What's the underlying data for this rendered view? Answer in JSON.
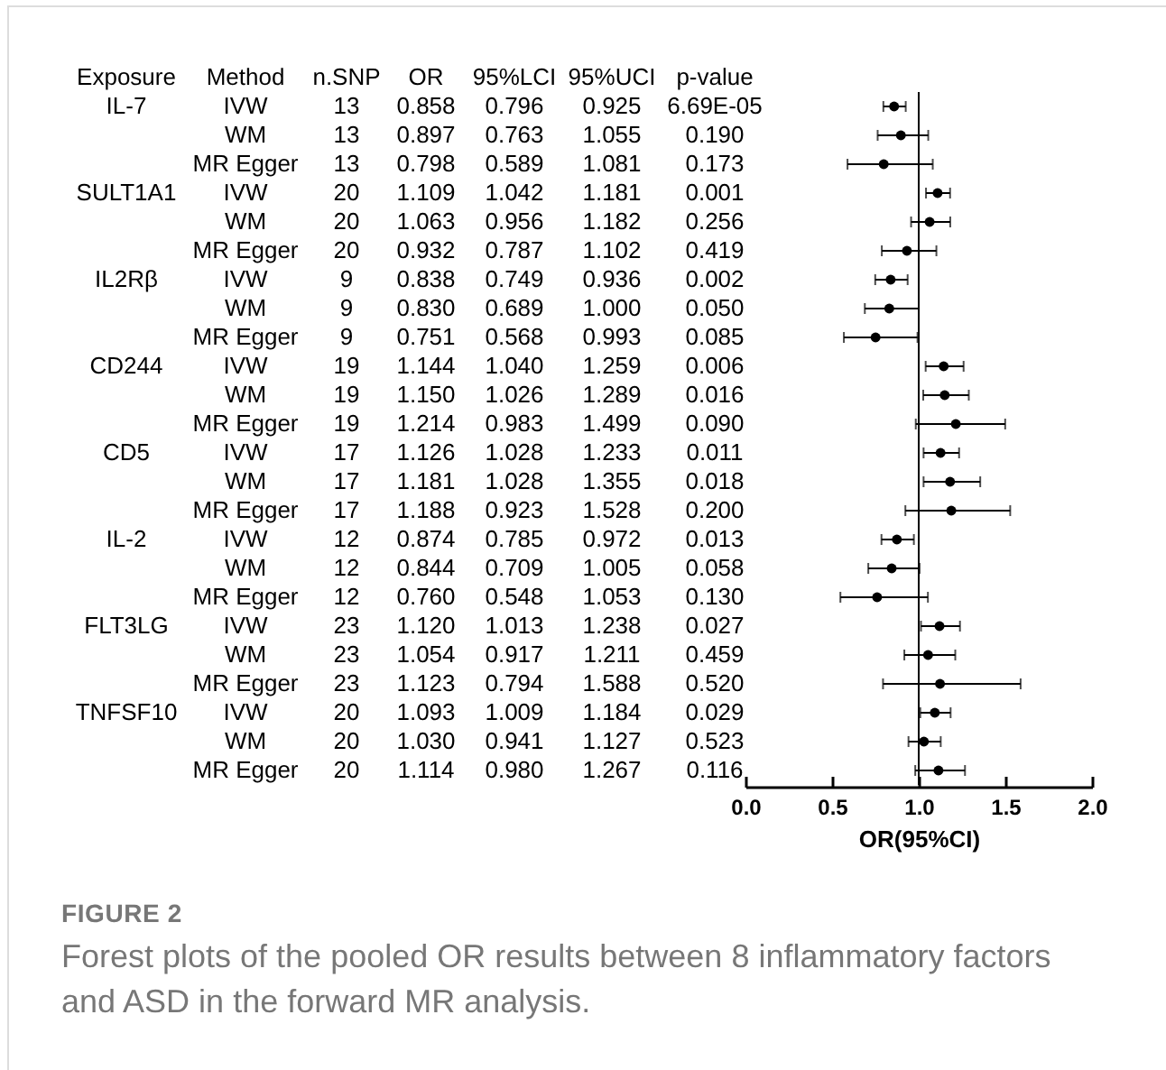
{
  "chart_data": [
    {
      "type": "other",
      "categories": [
        "Exposure",
        "Method",
        "n.SNP",
        "OR",
        "95%LCI",
        "95%UCI",
        "p-value"
      ],
      "cell_labels": [
        [
          "IL-7",
          "IVW",
          "13",
          "0.858",
          "0.796",
          "0.925",
          "6.69E-05"
        ],
        [
          null,
          "WM",
          "13",
          "0.897",
          "0.763",
          "1.055",
          "0.190"
        ],
        [
          null,
          "MR Egger",
          "13",
          "0.798",
          "0.589",
          "1.081",
          "0.173"
        ],
        [
          "SULT1A1",
          "IVW",
          "20",
          "1.109",
          "1.042",
          "1.181",
          "0.001"
        ],
        [
          null,
          "WM",
          "20",
          "1.063",
          "0.956",
          "1.182",
          "0.256"
        ],
        [
          null,
          "MR Egger",
          "20",
          "0.932",
          "0.787",
          "1.102",
          "0.419"
        ],
        [
          "IL2Rβ",
          "IVW",
          "9",
          "0.838",
          "0.749",
          "0.936",
          "0.002"
        ],
        [
          null,
          "WM",
          "9",
          "0.830",
          "0.689",
          "1.000",
          "0.050"
        ],
        [
          null,
          "MR Egger",
          "9",
          "0.751",
          "0.568",
          "0.993",
          "0.085"
        ],
        [
          "CD244",
          "IVW",
          "19",
          "1.144",
          "1.040",
          "1.259",
          "0.006"
        ],
        [
          null,
          "WM",
          "19",
          "1.150",
          "1.026",
          "1.289",
          "0.016"
        ],
        [
          null,
          "MR Egger",
          "19",
          "1.214",
          "0.983",
          "1.499",
          "0.090"
        ],
        [
          "CD5",
          "IVW",
          "17",
          "1.126",
          "1.028",
          "1.233",
          "0.011"
        ],
        [
          null,
          "WM",
          "17",
          "1.181",
          "1.028",
          "1.355",
          "0.018"
        ],
        [
          null,
          "MR Egger",
          "17",
          "1.188",
          "0.923",
          "1.528",
          "0.200"
        ],
        [
          "IL-2",
          "IVW",
          "12",
          "0.874",
          "0.785",
          "0.972",
          "0.013"
        ],
        [
          null,
          "WM",
          "12",
          "0.844",
          "0.709",
          "1.005",
          "0.058"
        ],
        [
          null,
          "MR Egger",
          "12",
          "0.760",
          "0.548",
          "1.053",
          "0.130"
        ],
        [
          "FLT3LG",
          "IVW",
          "23",
          "1.120",
          "1.013",
          "1.238",
          "0.027"
        ],
        [
          null,
          "WM",
          "23",
          "1.054",
          "0.917",
          "1.211",
          "0.459"
        ],
        [
          null,
          "MR Egger",
          "23",
          "1.123",
          "0.794",
          "1.588",
          "0.520"
        ],
        [
          "TNFSF10",
          "IVW",
          "20",
          "1.093",
          "1.009",
          "1.184",
          "0.029"
        ],
        [
          null,
          "WM",
          "20",
          "1.030",
          "0.941",
          "1.127",
          "0.523"
        ],
        [
          null,
          "MR Egger",
          "20",
          "1.114",
          "0.980",
          "1.267",
          "0.116"
        ]
      ]
    },
    {
      "type": "scatter",
      "orientation": "horizontal",
      "marker": "circle",
      "tick_labels": "x",
      "categories": [
        null,
        null,
        null,
        null,
        null,
        null,
        null,
        null,
        null,
        null,
        null,
        null,
        null,
        null,
        null,
        null,
        null,
        null,
        null,
        null,
        null,
        null,
        null,
        null
      ],
      "series": [
        {
          "color": "#000000",
          "values": [
            0.858,
            0.897,
            0.798,
            1.109,
            1.063,
            0.932,
            0.838,
            0.83,
            0.751,
            1.144,
            1.15,
            1.214,
            1.126,
            1.181,
            1.188,
            0.874,
            0.844,
            0.76,
            1.12,
            1.054,
            1.123,
            1.093,
            1.03,
            1.114
          ],
          "errors": [
            [
              0.796,
              0.925
            ],
            [
              0.763,
              1.055
            ],
            [
              0.589,
              1.081
            ],
            [
              1.042,
              1.181
            ],
            [
              0.956,
              1.182
            ],
            [
              0.787,
              1.102
            ],
            [
              0.749,
              0.936
            ],
            [
              0.689,
              1.0
            ],
            [
              0.568,
              0.993
            ],
            [
              1.04,
              1.259
            ],
            [
              1.026,
              1.289
            ],
            [
              0.983,
              1.499
            ],
            [
              1.028,
              1.233
            ],
            [
              1.028,
              1.355
            ],
            [
              0.923,
              1.528
            ],
            [
              0.785,
              0.972
            ],
            [
              0.709,
              1.005
            ],
            [
              0.548,
              1.053
            ],
            [
              1.013,
              1.238
            ],
            [
              0.917,
              1.211
            ],
            [
              0.794,
              1.588
            ],
            [
              1.009,
              1.184
            ],
            [
              0.941,
              1.127
            ],
            [
              0.98,
              1.267
            ]
          ]
        }
      ],
      "xlim": [
        0,
        2
      ],
      "xticks": [
        {
          "value": 0,
          "label": "0.0"
        },
        {
          "value": 0.5,
          "label": "0.5"
        },
        {
          "value": 1,
          "label": "1.0"
        },
        {
          "value": 1.5,
          "label": "1.5"
        },
        {
          "value": 2,
          "label": "2.0"
        }
      ],
      "xlabel": "OR(95%CI)",
      "ref_lines": [
        {
          "axis": "x",
          "value": 1
        }
      ],
      "annotations": [
        "FIGURE 2",
        "Forest plots of the pooled OR results between 8 inflammatory factors and ASD in the forward MR analysis."
      ]
    }
  ]
}
